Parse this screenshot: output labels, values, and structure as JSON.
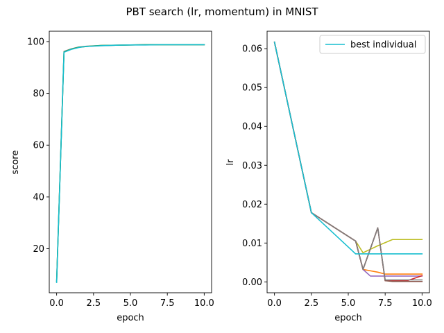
{
  "chart_data": {
    "title": "PBT search (lr, momentum) in MNIST",
    "subplots": [
      {
        "type": "line",
        "xlabel": "epoch",
        "ylabel": "score",
        "xlim": [
          -0.5,
          10.5
        ],
        "ylim": [
          3,
          104
        ],
        "xticks": [
          0.0,
          2.5,
          5.0,
          7.5,
          10.0
        ],
        "xtick_labels": [
          "0.0",
          "2.5",
          "5.0",
          "7.5",
          "10.0"
        ],
        "yticks": [
          20,
          40,
          60,
          80,
          100
        ],
        "ytick_labels": [
          "20",
          "40",
          "60",
          "80",
          "100"
        ],
        "series": [
          {
            "color": "#7f7f7f",
            "x": [
              0,
              0.5,
              1,
              1.5,
              2,
              3,
              4,
              5,
              6,
              7,
              8,
              9,
              10
            ],
            "y": [
              7.5,
              96.2,
              97.2,
              97.9,
              98.2,
              98.5,
              98.6,
              98.7,
              98.8,
              98.8,
              98.8,
              98.8,
              98.8
            ]
          },
          {
            "color": "#2ca02c",
            "x": [
              0,
              0.5,
              1,
              1.5,
              2,
              3,
              4,
              5,
              6,
              7,
              8,
              9,
              10
            ],
            "y": [
              7.2,
              96.0,
              97.1,
              97.8,
              98.1,
              98.5,
              98.6,
              98.7,
              98.8,
              98.8,
              98.8,
              98.8,
              98.8
            ]
          },
          {
            "color": "#17becf",
            "x": [
              0,
              0.5,
              1,
              1.5,
              2,
              3,
              4,
              5,
              6,
              7,
              8,
              9,
              10
            ],
            "y": [
              7.0,
              95.9,
              97.0,
              97.7,
              98.1,
              98.4,
              98.6,
              98.7,
              98.7,
              98.8,
              98.8,
              98.8,
              98.8
            ]
          }
        ]
      },
      {
        "type": "line",
        "xlabel": "epoch",
        "ylabel": "lr",
        "xlim": [
          -0.5,
          10.5
        ],
        "ylim": [
          -0.0028,
          0.0645
        ],
        "xticks": [
          0.0,
          2.5,
          5.0,
          7.5,
          10.0
        ],
        "xtick_labels": [
          "0.0",
          "2.5",
          "5.0",
          "7.5",
          "10.0"
        ],
        "yticks": [
          0.0,
          0.01,
          0.02,
          0.03,
          0.04,
          0.05,
          0.06
        ],
        "ytick_labels": [
          "0.00",
          "0.01",
          "0.02",
          "0.03",
          "0.04",
          "0.05",
          "0.06"
        ],
        "legend": {
          "position": "top-right",
          "entries": [
            {
              "label": "best individual",
              "color": "#17becf"
            }
          ]
        },
        "series": [
          {
            "color": "#bcbd22",
            "x": [
              0,
              2.5,
              5.5,
              6,
              7,
              8,
              10
            ],
            "y": [
              0.0617,
              0.0178,
              0.0105,
              0.0075,
              0.0093,
              0.0109,
              0.0109
            ]
          },
          {
            "color": "#ff7f0e",
            "x": [
              0,
              2.5,
              5.5,
              6,
              7,
              7.5,
              10
            ],
            "y": [
              0.0617,
              0.0178,
              0.0105,
              0.0032,
              0.0025,
              0.002,
              0.002
            ]
          },
          {
            "color": "#9467bd",
            "x": [
              0,
              2.5,
              5.5,
              6,
              6.5,
              7.5,
              10
            ],
            "y": [
              0.0617,
              0.0178,
              0.0105,
              0.0032,
              0.0015,
              0.0015,
              0.0015
            ]
          },
          {
            "color": "#d62728",
            "x": [
              0,
              2.5,
              5.5,
              6,
              7,
              7.5,
              9,
              10
            ],
            "y": [
              0.0617,
              0.0178,
              0.0105,
              0.0032,
              0.0139,
              0.0003,
              0.0003,
              0.0016
            ]
          },
          {
            "color": "#8c564b",
            "x": [
              0,
              2.5,
              5.5,
              6,
              7,
              7.5,
              8,
              10
            ],
            "y": [
              0.0617,
              0.0178,
              0.0105,
              0.0032,
              0.0139,
              0.0003,
              0.0001,
              0.0001
            ]
          },
          {
            "color": "#7f7f7f",
            "x": [
              0,
              2.5,
              5.5,
              6,
              7,
              7.5,
              10
            ],
            "y": [
              0.0617,
              0.0178,
              0.0105,
              0.0032,
              0.0139,
              0.0005,
              0.0005
            ]
          },
          {
            "color": "#17becf",
            "name": "best individual",
            "x": [
              0,
              2.5,
              5.5,
              6,
              7,
              8,
              10
            ],
            "y": [
              0.0617,
              0.0178,
              0.0072,
              0.0072,
              0.0072,
              0.0072,
              0.0072
            ]
          }
        ]
      }
    ]
  }
}
